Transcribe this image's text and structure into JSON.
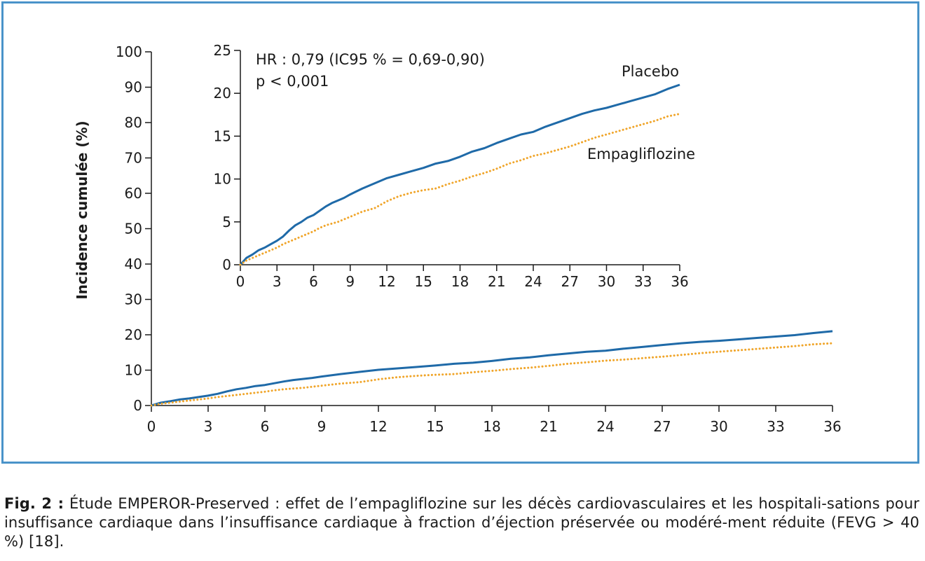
{
  "chart_data": [
    {
      "type": "line",
      "ylabel": "Incidence cumulée (%)",
      "xlim": [
        0,
        36
      ],
      "ylim": [
        0,
        100
      ],
      "x_ticks": [
        "0",
        "3",
        "6",
        "9",
        "12",
        "15",
        "18",
        "21",
        "24",
        "27",
        "30",
        "33",
        "36"
      ],
      "y_ticks": [
        "0",
        "10",
        "20",
        "30",
        "40",
        "50",
        "60",
        "70",
        "80",
        "90",
        "100"
      ],
      "grid": false,
      "series": [
        {
          "name": "Placebo",
          "color": "#1f6aa8",
          "style": "solid",
          "x": [
            0,
            0.5,
            1,
            1.5,
            2,
            2.5,
            3,
            3.5,
            4,
            4.5,
            5,
            5.5,
            6,
            6.5,
            7,
            7.5,
            8,
            8.5,
            9,
            10,
            11,
            12,
            13,
            14,
            15,
            16,
            17,
            18,
            19,
            20,
            21,
            22,
            23,
            24,
            25,
            26,
            27,
            28,
            29,
            30,
            31,
            32,
            33,
            34,
            35,
            36
          ],
          "y": [
            0,
            0.8,
            1.2,
            1.7,
            2.0,
            2.4,
            2.8,
            3.3,
            4.0,
            4.6,
            5.0,
            5.5,
            5.8,
            6.3,
            6.8,
            7.2,
            7.5,
            7.8,
            8.2,
            8.9,
            9.5,
            10.1,
            10.5,
            10.9,
            11.3,
            11.8,
            12.1,
            12.6,
            13.2,
            13.6,
            14.2,
            14.7,
            15.2,
            15.5,
            16.1,
            16.6,
            17.1,
            17.6,
            18.0,
            18.3,
            18.7,
            19.1,
            19.5,
            19.9,
            20.5,
            21.0
          ]
        },
        {
          "name": "Empagliflozine",
          "color": "#f0a52a",
          "style": "dotted",
          "x": [
            0,
            0.5,
            1,
            1.5,
            2,
            2.5,
            3,
            3.5,
            4,
            4.5,
            5,
            5.5,
            6,
            6.5,
            7,
            7.5,
            8,
            8.5,
            9,
            10,
            11,
            12,
            13,
            14,
            15,
            16,
            17,
            18,
            19,
            20,
            21,
            22,
            23,
            24,
            25,
            26,
            27,
            28,
            29,
            30,
            31,
            32,
            33,
            34,
            35,
            36
          ],
          "y": [
            0,
            0.5,
            0.8,
            1.1,
            1.4,
            1.7,
            2.0,
            2.4,
            2.7,
            3.0,
            3.3,
            3.6,
            3.9,
            4.3,
            4.6,
            4.8,
            5.0,
            5.3,
            5.6,
            6.2,
            6.6,
            7.4,
            8.0,
            8.4,
            8.7,
            8.9,
            9.4,
            9.8,
            10.3,
            10.7,
            11.2,
            11.8,
            12.2,
            12.7,
            13.0,
            13.4,
            13.8,
            14.3,
            14.8,
            15.2,
            15.6,
            16.0,
            16.4,
            16.8,
            17.3,
            17.6
          ]
        }
      ]
    },
    {
      "type": "line",
      "xlim": [
        0,
        36
      ],
      "ylim": [
        0,
        25
      ],
      "x_ticks": [
        "0",
        "3",
        "6",
        "9",
        "12",
        "15",
        "18",
        "21",
        "24",
        "27",
        "30",
        "33",
        "36"
      ],
      "y_ticks": [
        "0",
        "5",
        "10",
        "15",
        "20",
        "25"
      ],
      "grid": false,
      "annotation_lines": [
        "HR : 0,79 (IC95 % = 0,69-0,90)",
        "p < 0,001"
      ],
      "series_labels": [
        "Placebo",
        "Empagliflozine"
      ],
      "series": [
        {
          "name": "Placebo",
          "color": "#1f6aa8",
          "style": "solid",
          "same_as": "main"
        },
        {
          "name": "Empagliflozine",
          "color": "#f0a52a",
          "style": "dotted",
          "same_as": "main"
        }
      ]
    }
  ],
  "caption": {
    "label": "Fig. 2 :",
    "text": " Étude EMPEROR-Preserved : effet de l’empagliflozine sur les décès cardiovasculaires et les hospitali-sations pour insuffisance cardiaque dans l’insuffisance cardiaque à fraction d’éjection préservée ou modéré-ment réduite (FEVG > 40 %) [18]."
  }
}
